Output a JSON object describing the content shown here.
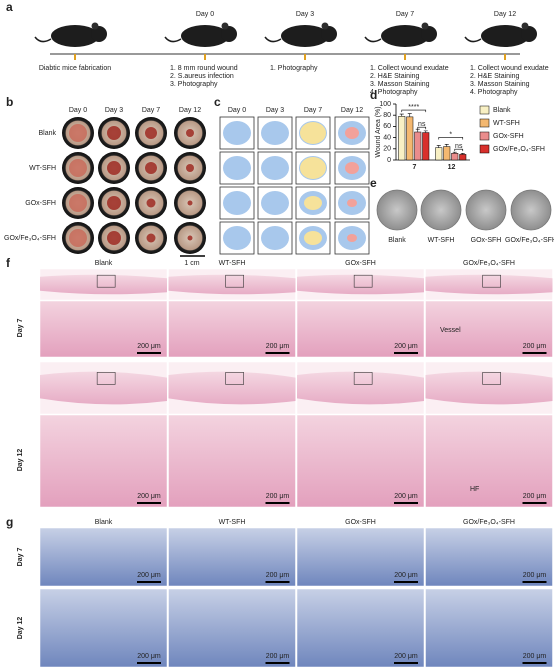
{
  "panel_labels": [
    "a",
    "b",
    "c",
    "d",
    "e",
    "f",
    "g"
  ],
  "timeline": {
    "start": "Diabtic mice fabrication",
    "days": [
      "Day 0",
      "Day 3",
      "Day 7",
      "Day 12"
    ],
    "steps": [
      [
        "1. 8 mm round wound",
        "2. S.aureus infection",
        "3. Photography"
      ],
      [
        "1. Photography"
      ],
      [
        "1. Collect wound exudate",
        "2. H&E Staining",
        "3. Masson Staining",
        "4. Photography"
      ],
      [
        "1. Collect wound exudate",
        "2. H&E Staining",
        "3. Masson Staining",
        "4. Photography"
      ]
    ]
  },
  "photos": {
    "columns": [
      "Day 0",
      "Day 3",
      "Day 7",
      "Day 12"
    ],
    "rows": [
      "Blank",
      "WT-SFH",
      "GOx-SFH",
      "GOx/Fe₃O₄-SFH"
    ],
    "scale": "1 cm"
  },
  "schematic": {
    "columns": [
      "Day 0",
      "Day 3",
      "Day 7",
      "Day 12"
    ]
  },
  "chart_data": {
    "type": "bar",
    "y_label": "Wound Area (%)",
    "categories": [
      "7",
      "12"
    ],
    "series": [
      {
        "name": "Blank",
        "color": "#f8f0c4",
        "values": [
          78,
          22
        ],
        "errors": [
          4,
          4
        ]
      },
      {
        "name": "WT-SFH",
        "color": "#f4b870",
        "values": [
          77,
          24
        ],
        "errors": [
          6,
          4
        ]
      },
      {
        "name": "GOx-SFH",
        "color": "#ea8c8c",
        "values": [
          50,
          12
        ],
        "errors": [
          5,
          2
        ]
      },
      {
        "name": "GOx/Fe₃O₄-SFH",
        "color": "#d8302c",
        "values": [
          49,
          10
        ],
        "errors": [
          3,
          2
        ]
      }
    ],
    "ylim": [
      0,
      100
    ],
    "yticks": [
      0,
      20,
      40,
      60,
      80,
      100
    ],
    "annotations": [
      "****",
      "ns",
      "*",
      "ns"
    ]
  },
  "plates": {
    "labels": [
      "Blank",
      "WT-SFH",
      "GOx-SFH",
      "GOx/Fe₃O₄-SFH"
    ]
  },
  "he": {
    "columns": [
      "Blank",
      "WT-SFH",
      "GOx-SFH",
      "GOx/Fe₃O₄-SFH"
    ],
    "rows": [
      "Day 7",
      "Day 12"
    ],
    "scale": "200 μm",
    "annotations": [
      "Vessel",
      "HF"
    ]
  },
  "masson": {
    "columns": [
      "Blank",
      "WT-SFH",
      "GOx-SFH",
      "GOx/Fe₃O₄-SFH"
    ],
    "rows": [
      "Day 7",
      "Day 12"
    ],
    "scale": "200 μm"
  }
}
